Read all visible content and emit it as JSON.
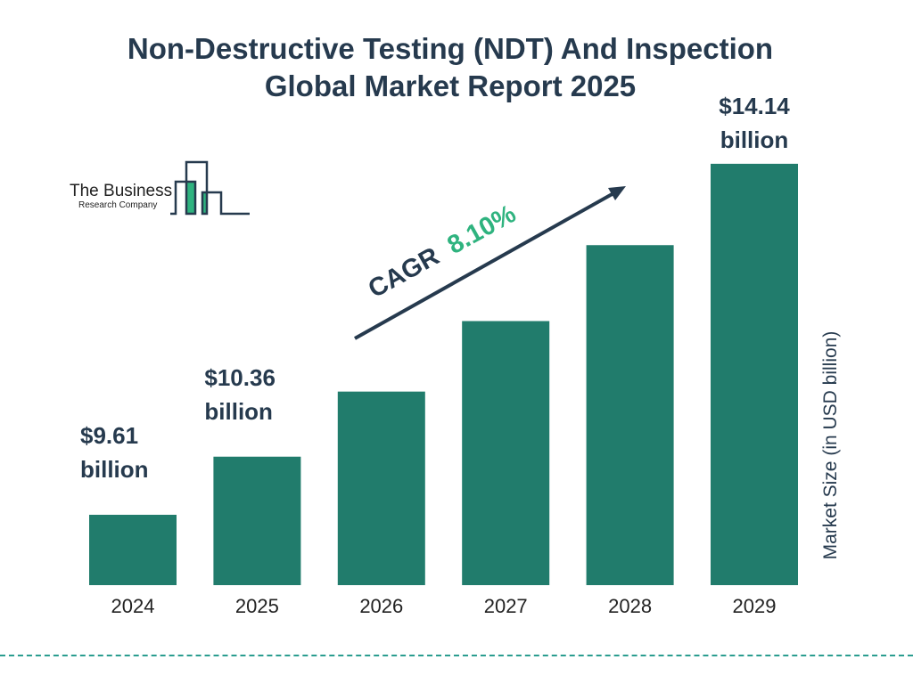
{
  "chart_data": {
    "type": "bar",
    "title": "Non-Destructive Testing (NDT) And Inspection Global Market Report 2025",
    "categories": [
      "2024",
      "2025",
      "2026",
      "2027",
      "2028",
      "2029"
    ],
    "values": [
      9.61,
      10.36,
      11.2,
      12.11,
      13.09,
      14.14
    ],
    "data_labels": [
      {
        "category": "2024",
        "line1": "$9.61",
        "line2": "billion"
      },
      {
        "category": "2025",
        "line1": "$10.36",
        "line2": "billion"
      },
      {
        "category": "2029",
        "line1": "$14.14",
        "line2": "billion"
      }
    ],
    "ylabel": "Market Size (in USD billion)",
    "xlabel": "",
    "grid": false,
    "bar_color": "#217c6c",
    "annotation": {
      "prefix": "CAGR",
      "value": "8.10%",
      "value_color": "#2fb37f"
    }
  },
  "title_lines": [
    "Non-Destructive Testing (NDT) And Inspection",
    "Global Market Report 2025"
  ],
  "logo": {
    "line1": "The Business",
    "line2": "Research Company"
  }
}
